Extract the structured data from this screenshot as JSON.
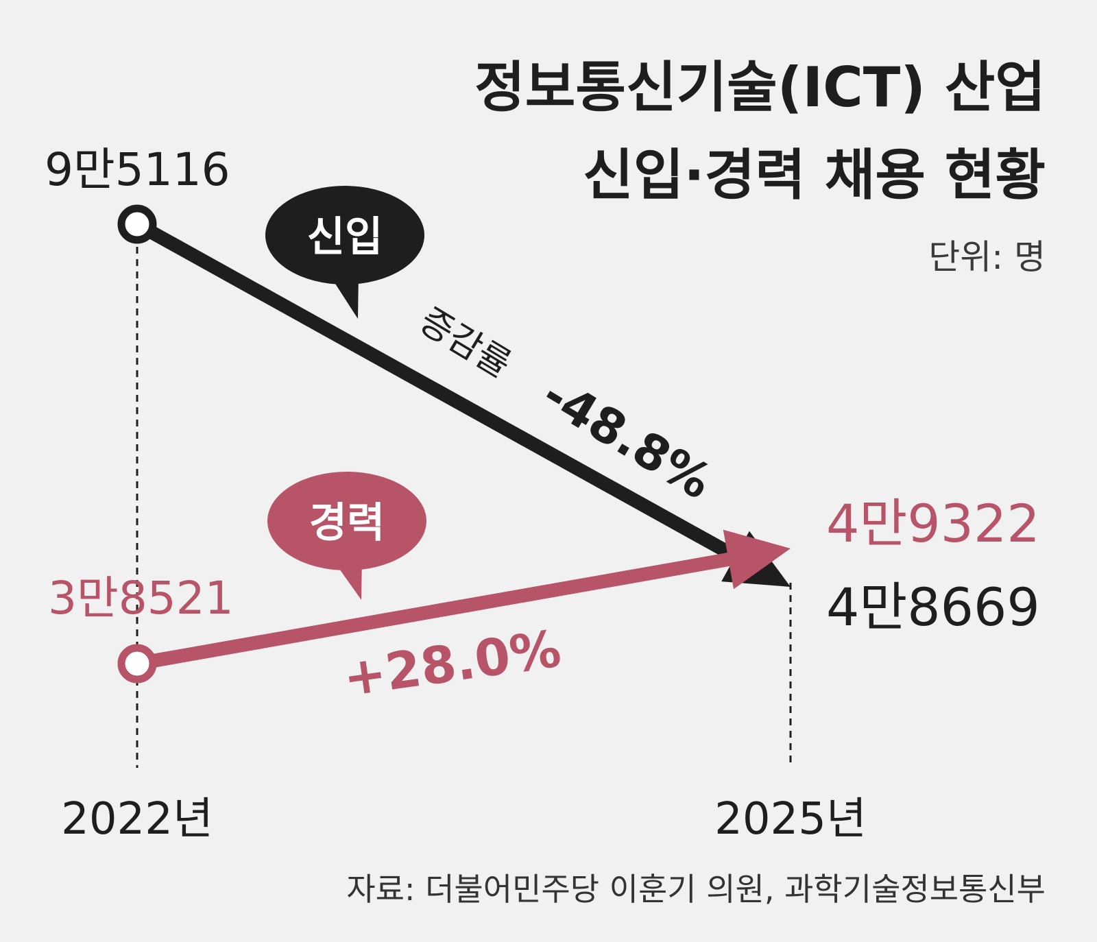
{
  "colors": {
    "new_hire": "#1e1e1e",
    "experienced": "#b75467",
    "background": "#f1f1f1"
  },
  "chart_data": {
    "type": "line",
    "title": [
      "정보통신기술(ICT) 산업",
      "신입·경력 채용 현황"
    ],
    "unit": "단위: 명",
    "x": [
      "2022년",
      "2025년"
    ],
    "series": [
      {
        "name": "신입",
        "values": [
          95116,
          48669
        ],
        "value_labels": [
          "9만5116",
          "4만8669"
        ],
        "change_prefix": "증감률",
        "change": "-48.8%",
        "color": "#1e1e1e"
      },
      {
        "name": "경력",
        "values": [
          38521,
          49322
        ],
        "value_labels": [
          "3만8521",
          "4만9322"
        ],
        "change": "+28.0%",
        "color": "#b75467"
      }
    ],
    "source": "자료: 더불어민주당 이훈기 의원, 과학기술정보통신부"
  }
}
